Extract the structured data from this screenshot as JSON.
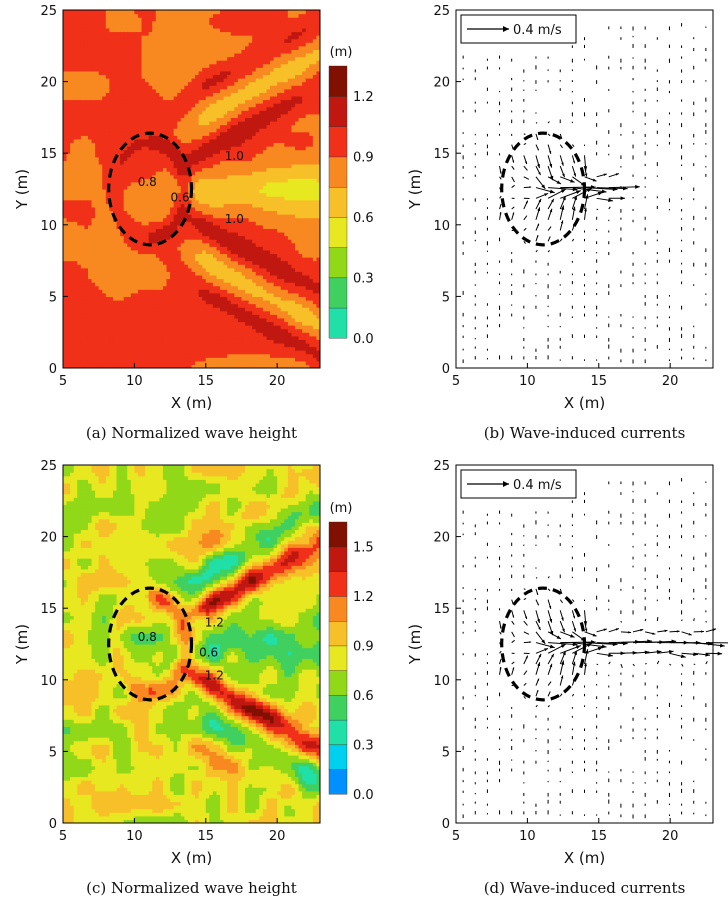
{
  "chart_data": [
    {
      "panel": "a",
      "type": "heatmap",
      "caption": "(a) Normalized wave height",
      "xlabel": "X (m)",
      "ylabel": "Y (m)",
      "xlim": [
        5,
        23
      ],
      "ylim": [
        0,
        25
      ],
      "xticks": [
        5,
        10,
        15,
        20
      ],
      "yticks": [
        0,
        5,
        10,
        15,
        20,
        25
      ],
      "colorbar": {
        "unit": "(m)",
        "ticks": [
          0.0,
          0.3,
          0.6,
          0.9,
          1.2
        ],
        "tick_labels": [
          "0.0",
          "0.3",
          "0.6",
          "0.9",
          "1.2"
        ],
        "min": 0.0,
        "max": 1.35,
        "step": 0.15
      },
      "contour_labels": [
        {
          "text": "0.8",
          "x": 10.9,
          "y": 13.0
        },
        {
          "text": "0.6",
          "x": 13.2,
          "y": 11.9
        },
        {
          "text": "1.0",
          "x": 17.0,
          "y": 14.8
        },
        {
          "text": "1.0",
          "x": 17.0,
          "y": 10.4
        }
      ],
      "dashed_ellipse": {
        "cx": 11.1,
        "cy": 12.5,
        "rx": 2.9,
        "ry": 3.9
      },
      "field": {
        "background": 0.9,
        "shadow_min": 0.55,
        "focus_max": 1.25
      }
    },
    {
      "panel": "b",
      "type": "quiver",
      "caption": "(b) Wave-induced currents",
      "xlabel": "X (m)",
      "ylabel": "Y (m)",
      "xlim": [
        5,
        23
      ],
      "ylim": [
        0,
        25
      ],
      "xticks": [
        5,
        10,
        15,
        20
      ],
      "yticks": [
        0,
        5,
        10,
        15,
        20,
        25
      ],
      "reference_vector": {
        "label": "0.4 m/s",
        "speed": 0.4
      },
      "dashed_ellipse": {
        "cx": 11.1,
        "cy": 12.5,
        "rx": 2.9,
        "ry": 3.9
      },
      "jet": {
        "x_start": 11.0,
        "x_end": 16.5,
        "y": 12.5,
        "max_speed": 0.3
      }
    },
    {
      "panel": "c",
      "type": "heatmap",
      "caption": "(c) Normalized wave height",
      "xlabel": "X (m)",
      "ylabel": "Y (m)",
      "xlim": [
        5,
        23
      ],
      "ylim": [
        0,
        25
      ],
      "xticks": [
        5,
        10,
        15,
        20
      ],
      "yticks": [
        0,
        5,
        10,
        15,
        20,
        25
      ],
      "colorbar": {
        "unit": "(m)",
        "ticks": [
          0.0,
          0.3,
          0.6,
          0.9,
          1.2,
          1.5
        ],
        "tick_labels": [
          "0.0",
          "0.3",
          "0.6",
          "0.9",
          "1.2",
          "1.5"
        ],
        "min": 0.0,
        "max": 1.65,
        "step": 0.15
      },
      "contour_labels": [
        {
          "text": "0.8",
          "x": 10.9,
          "y": 13.0
        },
        {
          "text": "0.6",
          "x": 15.2,
          "y": 11.9
        },
        {
          "text": "1.2",
          "x": 15.6,
          "y": 14.0
        },
        {
          "text": "1.2",
          "x": 15.6,
          "y": 10.3
        }
      ],
      "dashed_ellipse": {
        "cx": 11.1,
        "cy": 12.5,
        "rx": 2.9,
        "ry": 3.9
      },
      "field": {
        "background": 0.8,
        "shadow_min": 0.5,
        "focus_max": 1.55
      }
    },
    {
      "panel": "d",
      "type": "quiver",
      "caption": "(d) Wave-induced currents",
      "xlabel": "X (m)",
      "ylabel": "Y (m)",
      "xlim": [
        5,
        23
      ],
      "ylim": [
        0,
        25
      ],
      "xticks": [
        5,
        10,
        15,
        20
      ],
      "yticks": [
        0,
        5,
        10,
        15,
        20,
        25
      ],
      "reference_vector": {
        "label": "0.4 m/s",
        "speed": 0.4
      },
      "dashed_ellipse": {
        "cx": 11.1,
        "cy": 12.5,
        "rx": 2.9,
        "ry": 3.9
      },
      "jet": {
        "x_start": 11.0,
        "x_end": 23.0,
        "y": 12.5,
        "max_speed": 0.3
      }
    }
  ],
  "colors": {
    "scale": [
      "#000080",
      "#0018c8",
      "#0050ff",
      "#0090ff",
      "#00d0f0",
      "#20e0a8",
      "#40d060",
      "#90d818",
      "#e8e820",
      "#f8c028",
      "#f88820",
      "#f03018",
      "#c01810",
      "#801000"
    ],
    "ellipse": "#000000",
    "axis": "#000000"
  }
}
